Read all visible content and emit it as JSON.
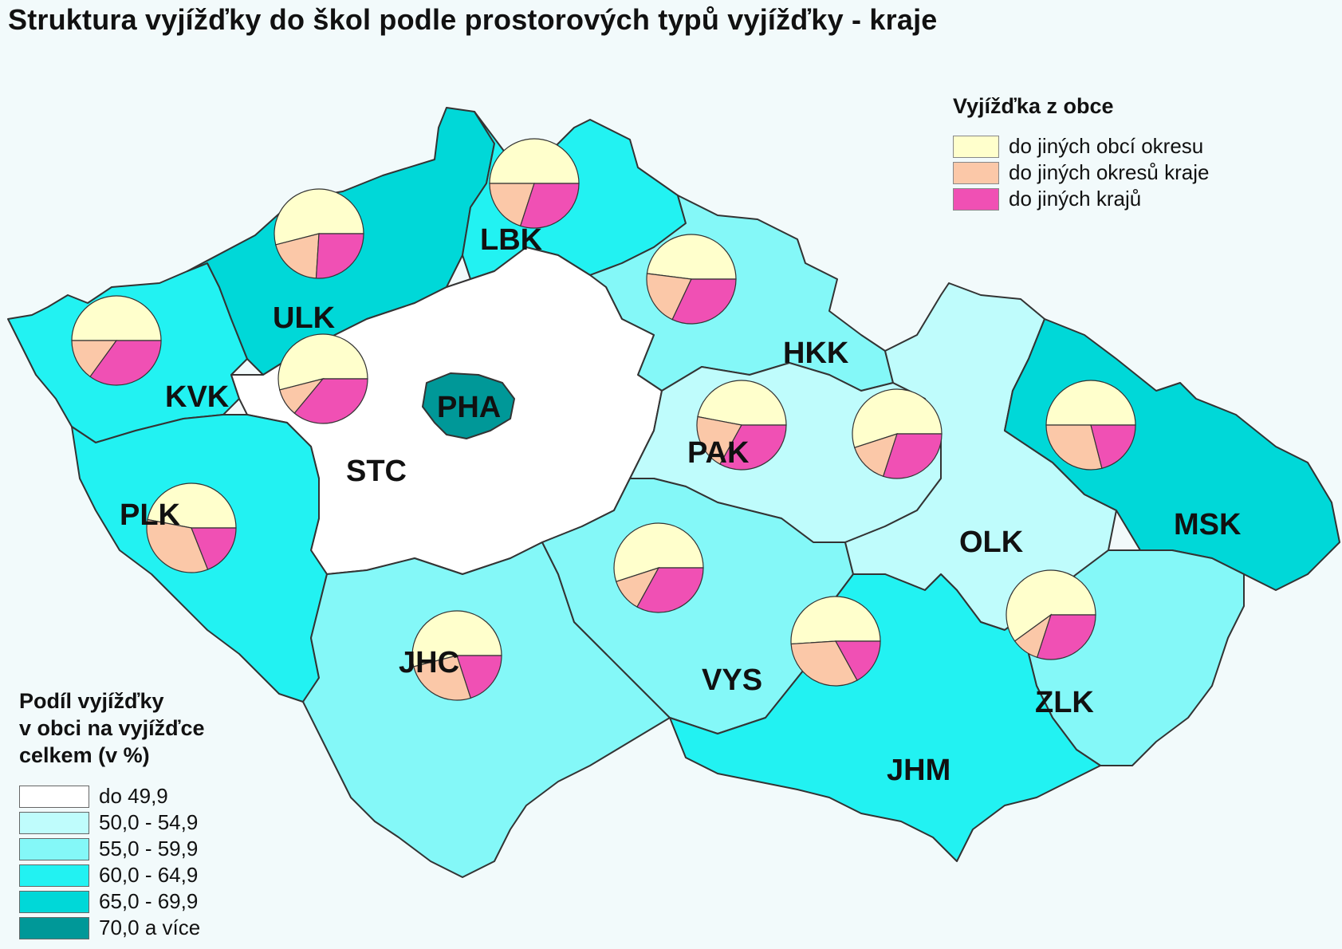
{
  "title": "Struktura vyjížďky do škol podle prostorových typů vyjížďky - kraje",
  "pie_legend": {
    "title": "Vyjížďka z obce",
    "items": [
      {
        "label": "do jiných obcí okresu",
        "color": "#ffffcc"
      },
      {
        "label": "do jiných okresů kraje",
        "color": "#fbc8a8"
      },
      {
        "label": "do jiných krajů",
        "color": "#f050b4"
      }
    ]
  },
  "choropleth_legend": {
    "title": "Podíl vyjížďky\nv obci na vyjížďce\ncelkem (v %)",
    "classes": [
      {
        "label": "do 49,9",
        "color": "#ffffff"
      },
      {
        "label": "50,0 - 54,9",
        "color": "#bffcfc"
      },
      {
        "label": "55,0 - 59,9",
        "color": "#84f8f8"
      },
      {
        "label": "60,0 - 64,9",
        "color": "#22f2f2"
      },
      {
        "label": "65,0 - 69,9",
        "color": "#00d8d8"
      },
      {
        "label": "70,0  a více",
        "color": "#009898"
      }
    ]
  },
  "regions": [
    {
      "code": "PHA",
      "class": 5,
      "shares": null
    },
    {
      "code": "STC",
      "class": 0,
      "shares": [
        54,
        10,
        36
      ]
    },
    {
      "code": "JHC",
      "class": 2,
      "shares": [
        54,
        26,
        20
      ]
    },
    {
      "code": "PLK",
      "class": 3,
      "shares": [
        47,
        34,
        19
      ]
    },
    {
      "code": "KVK",
      "class": 3,
      "shares": [
        50,
        15,
        35
      ]
    },
    {
      "code": "ULK",
      "class": 4,
      "shares": [
        54,
        20,
        26
      ]
    },
    {
      "code": "LBK",
      "class": 3,
      "shares": [
        50,
        20,
        30
      ]
    },
    {
      "code": "HKK",
      "class": 2,
      "shares": [
        48,
        20,
        32
      ]
    },
    {
      "code": "PAK",
      "class": 1,
      "shares": [
        47,
        20,
        33
      ]
    },
    {
      "code": "VYS",
      "class": 2,
      "shares": [
        55,
        12,
        33
      ]
    },
    {
      "code": "JHM",
      "class": 3,
      "shares": [
        51,
        32,
        17
      ]
    },
    {
      "code": "OLK",
      "class": 1,
      "shares": [
        55,
        15,
        30
      ]
    },
    {
      "code": "MSK",
      "class": 4,
      "shares": [
        50,
        29,
        21
      ]
    },
    {
      "code": "ZLK",
      "class": 2,
      "shares": [
        60,
        10,
        30
      ]
    }
  ]
}
